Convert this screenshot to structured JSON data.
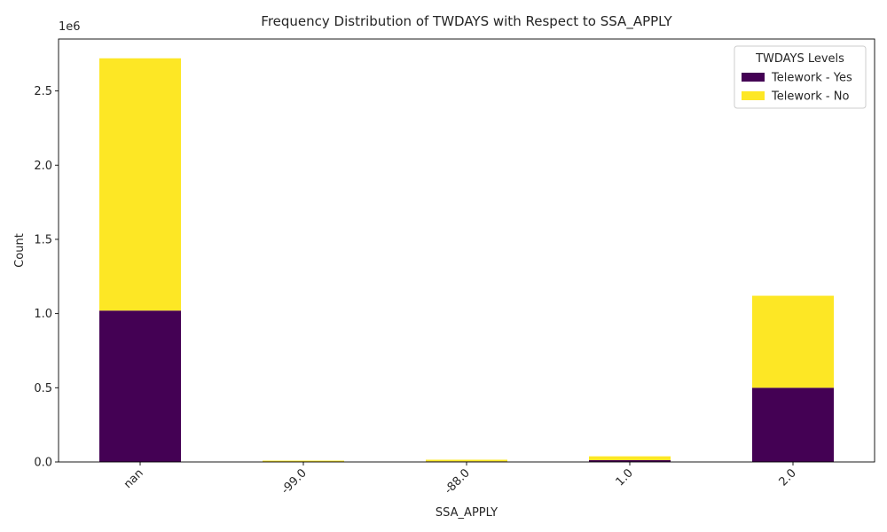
{
  "chart_data": {
    "type": "bar",
    "stacked": true,
    "title": "Frequency Distribution of TWDAYS with Respect to SSA_APPLY",
    "xlabel": "SSA_APPLY",
    "ylabel": "Count",
    "y_offset_text": "1e6",
    "categories": [
      "nan",
      "-99.0",
      "-88.0",
      "1.0",
      "2.0"
    ],
    "series": [
      {
        "name": "Telework - Yes",
        "color": "#440154",
        "values": [
          1020000,
          3000,
          4000,
          12000,
          500000
        ]
      },
      {
        "name": "Telework - No",
        "color": "#fde725",
        "values": [
          1700000,
          6000,
          11000,
          26000,
          620000
        ]
      }
    ],
    "ylim": [
      0,
      2850000
    ],
    "yticks": [
      0,
      500000,
      1000000,
      1500000,
      2000000,
      2500000
    ],
    "ytick_labels": [
      "0.0",
      "0.5",
      "1.0",
      "1.5",
      "2.0",
      "2.5"
    ],
    "grid": false,
    "legend": {
      "title": "TWDAYS Levels",
      "position": "top-right"
    },
    "xtick_rotation": 45
  }
}
